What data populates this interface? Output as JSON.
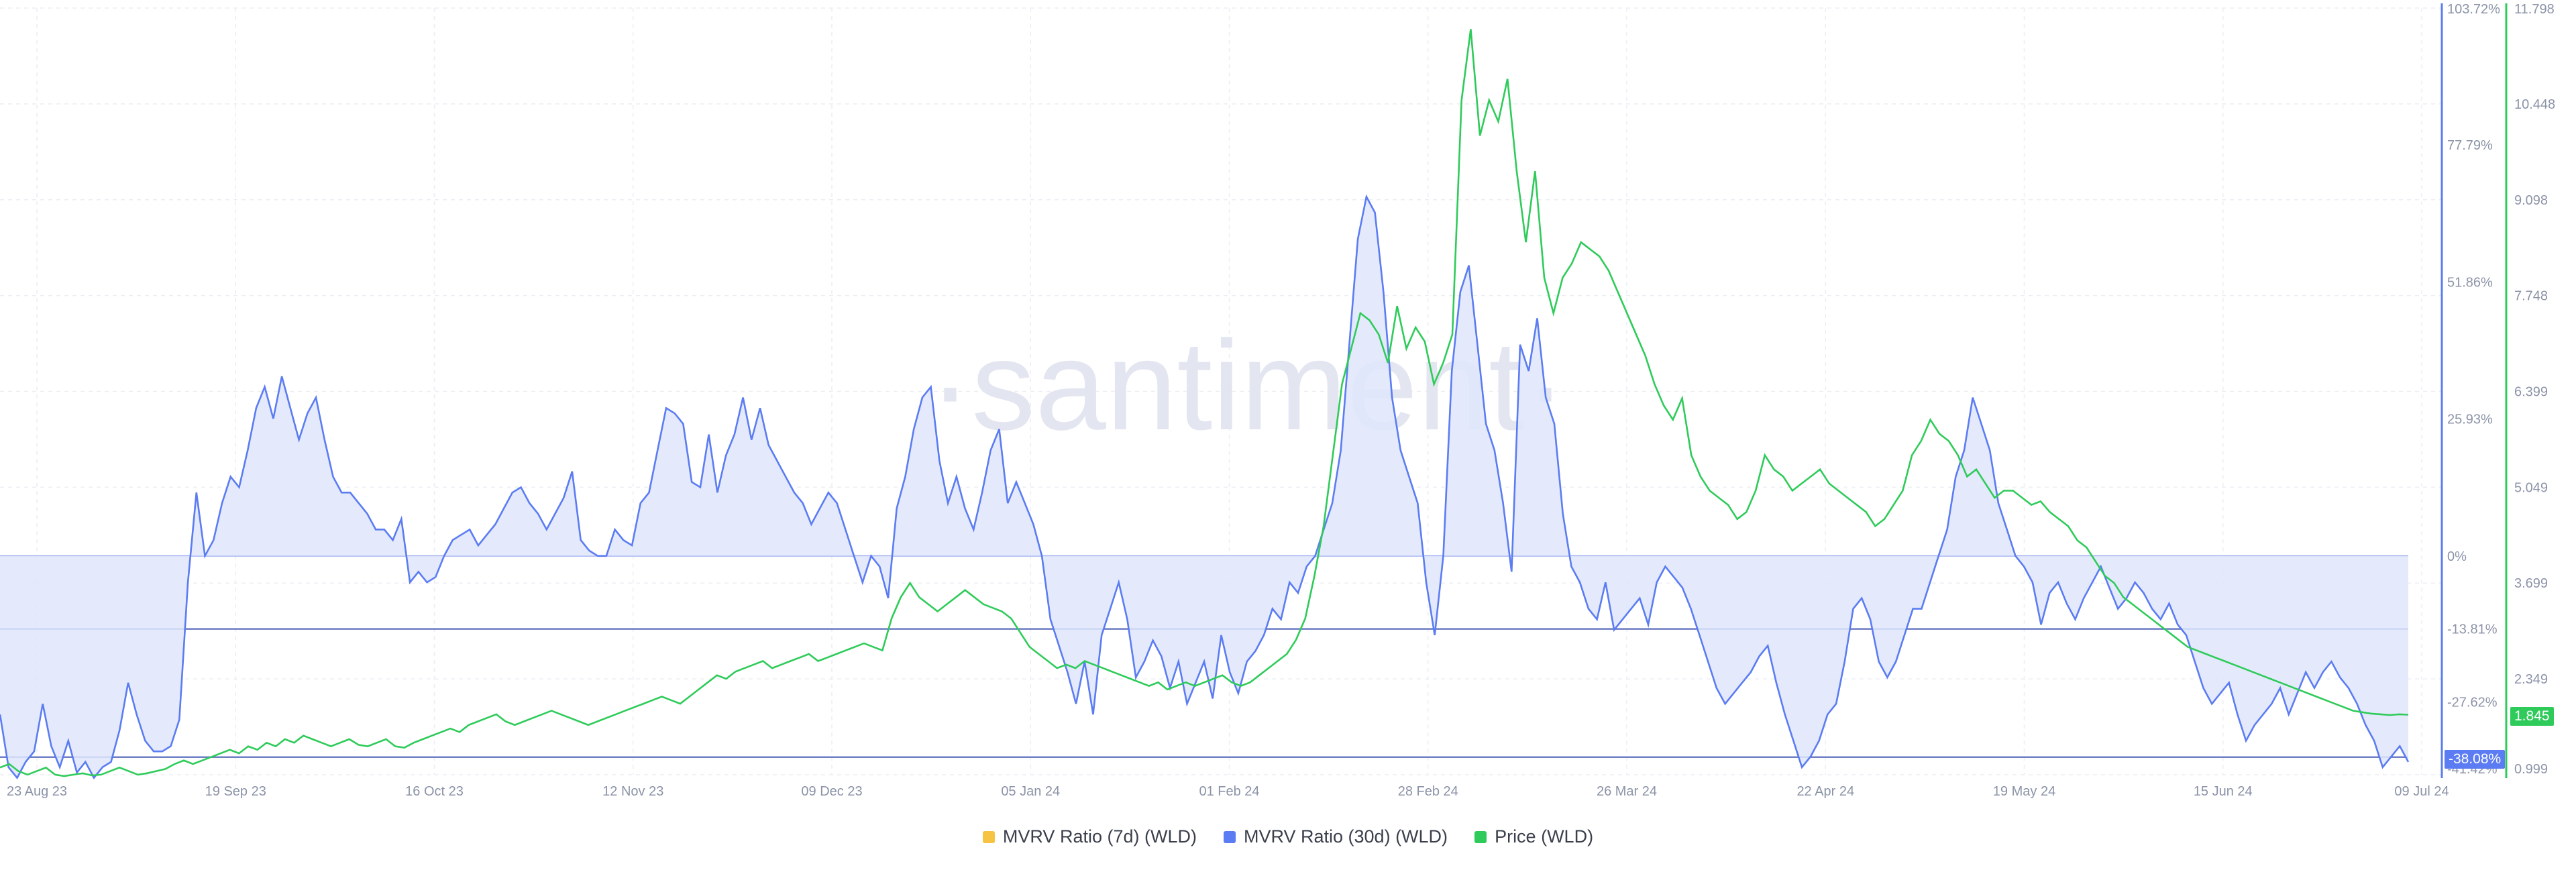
{
  "watermark": "·santiment·",
  "badges": {
    "mvrv30": "-38.08%",
    "price": "1.845"
  },
  "colors": {
    "mvrv7": "#f6c342",
    "mvrv30": "#5b7cf2",
    "price": "#2fcb5a",
    "fill": "#dfe6fc"
  },
  "legend": [
    "MVRV Ratio (7d) (WLD)",
    "MVRV Ratio (30d) (WLD)",
    "Price (WLD)"
  ],
  "chart_data": {
    "type": "line",
    "x_ticks": [
      "23 Aug 23",
      "19 Sep 23",
      "16 Oct 23",
      "12 Nov 23",
      "09 Dec 23",
      "05 Jan 24",
      "01 Feb 24",
      "28 Feb 24",
      "26 Mar 24",
      "22 Apr 24",
      "19 May 24",
      "15 Jun 24",
      "09 Jul 24"
    ],
    "y_left_ticks": [
      "103.72%",
      "77.79%",
      "51.86%",
      "25.93%",
      "0%",
      "-13.81%",
      "-27.62%",
      "-38.08%",
      "-41.42%"
    ],
    "y_right_ticks": [
      "11.798",
      "10.448",
      "9.098",
      "7.748",
      "6.399",
      "5.049",
      "3.699",
      "2.349",
      "0.999"
    ],
    "y_left_range": [
      -41.42,
      103.72
    ],
    "y_right_range": [
      0.999,
      11.798
    ],
    "reference_lines": [
      0,
      -13.81,
      -38.08
    ],
    "series": [
      {
        "name": "MVRV Ratio (30d) (WLD)",
        "axis": "left",
        "values": [
          -30,
          -40,
          -42,
          -39,
          -37,
          -28,
          -36,
          -40,
          -35,
          -41,
          -39,
          -42,
          -40,
          -39,
          -33,
          -24,
          -30,
          -35,
          -37,
          -37,
          -36,
          -31,
          -5,
          12,
          0,
          3,
          10,
          15,
          13,
          20,
          28,
          32,
          26,
          34,
          28,
          22,
          27,
          30,
          22,
          15,
          12,
          12,
          10,
          8,
          5,
          5,
          3,
          7,
          -5,
          -3,
          -5,
          -4,
          0,
          3,
          4,
          5,
          2,
          4,
          6,
          9,
          12,
          13,
          10,
          8,
          5,
          8,
          11,
          16,
          3,
          1,
          0,
          0,
          5,
          3,
          2,
          10,
          12,
          20,
          28,
          27,
          25,
          14,
          13,
          23,
          12,
          19,
          23,
          30,
          22,
          28,
          21,
          18,
          15,
          12,
          10,
          6,
          9,
          12,
          10,
          5,
          0,
          -5,
          0,
          -2,
          -8,
          9,
          15,
          24,
          30,
          32,
          18,
          10,
          15,
          9,
          5,
          12,
          20,
          24,
          10,
          14,
          10,
          6,
          0,
          -12,
          -17,
          -22,
          -28,
          -20,
          -30,
          -15,
          -10,
          -5,
          -12,
          -23,
          -20,
          -16,
          -19,
          -25,
          -20,
          -28,
          -24,
          -20,
          -27,
          -15,
          -22,
          -26,
          -20,
          -18,
          -15,
          -10,
          -12,
          -5,
          -7,
          -2,
          0,
          5,
          10,
          20,
          40,
          60,
          68,
          65,
          50,
          30,
          20,
          15,
          10,
          -5,
          -15,
          0,
          35,
          50,
          55,
          40,
          25,
          20,
          10,
          -3,
          40,
          35,
          45,
          30,
          25,
          8,
          -2,
          -5,
          -10,
          -12,
          -5,
          -14,
          -12,
          -10,
          -8,
          -13,
          -5,
          -2,
          -4,
          -6,
          -10,
          -15,
          -20,
          -25,
          -28,
          -26,
          -24,
          -22,
          -19,
          -17,
          -24,
          -30,
          -35,
          -40,
          -38,
          -35,
          -30,
          -28,
          -20,
          -10,
          -8,
          -12,
          -20,
          -23,
          -20,
          -15,
          -10,
          -10,
          -5,
          0,
          5,
          15,
          20,
          30,
          25,
          20,
          10,
          5,
          0,
          -2,
          -5,
          -13,
          -7,
          -5,
          -9,
          -12,
          -8,
          -5,
          -2,
          -6,
          -10,
          -8,
          -5,
          -7,
          -10,
          -12,
          -9,
          -13,
          -15,
          -20,
          -25,
          -28,
          -26,
          -24,
          -30,
          -35,
          -32,
          -30,
          -28,
          -25,
          -30,
          -26,
          -22,
          -25,
          -22,
          -20,
          -23,
          -25,
          -28,
          -32,
          -35,
          -40,
          -38,
          -36,
          -39
        ]
      },
      {
        "name": "Price (WLD)",
        "axis": "right",
        "values": [
          1.1,
          1.15,
          1.05,
          1.0,
          1.05,
          1.1,
          1.0,
          0.98,
          1.0,
          1.02,
          0.99,
          1.0,
          1.05,
          1.1,
          1.05,
          1.0,
          1.02,
          1.05,
          1.08,
          1.15,
          1.2,
          1.15,
          1.2,
          1.25,
          1.3,
          1.35,
          1.3,
          1.4,
          1.35,
          1.45,
          1.4,
          1.5,
          1.45,
          1.55,
          1.5,
          1.45,
          1.4,
          1.45,
          1.5,
          1.42,
          1.4,
          1.45,
          1.5,
          1.4,
          1.38,
          1.45,
          1.5,
          1.55,
          1.6,
          1.65,
          1.6,
          1.7,
          1.75,
          1.8,
          1.85,
          1.75,
          1.7,
          1.75,
          1.8,
          1.85,
          1.9,
          1.85,
          1.8,
          1.75,
          1.7,
          1.75,
          1.8,
          1.85,
          1.9,
          1.95,
          2.0,
          2.05,
          2.1,
          2.05,
          2.0,
          2.1,
          2.2,
          2.3,
          2.4,
          2.35,
          2.45,
          2.5,
          2.55,
          2.6,
          2.5,
          2.55,
          2.6,
          2.65,
          2.7,
          2.6,
          2.65,
          2.7,
          2.75,
          2.8,
          2.85,
          2.8,
          2.75,
          3.2,
          3.5,
          3.7,
          3.5,
          3.4,
          3.3,
          3.4,
          3.5,
          3.6,
          3.5,
          3.4,
          3.35,
          3.3,
          3.2,
          3.0,
          2.8,
          2.7,
          2.6,
          2.5,
          2.55,
          2.5,
          2.6,
          2.55,
          2.5,
          2.45,
          2.4,
          2.35,
          2.3,
          2.25,
          2.3,
          2.2,
          2.25,
          2.3,
          2.25,
          2.3,
          2.35,
          2.4,
          2.3,
          2.25,
          2.3,
          2.4,
          2.5,
          2.6,
          2.7,
          2.9,
          3.2,
          3.8,
          4.5,
          5.5,
          6.5,
          7.0,
          7.5,
          7.4,
          7.2,
          6.8,
          7.6,
          7.0,
          7.3,
          7.1,
          6.5,
          6.8,
          7.2,
          10.5,
          11.5,
          10.0,
          10.5,
          10.2,
          10.8,
          9.5,
          8.5,
          9.5,
          8.0,
          7.5,
          8.0,
          8.2,
          8.5,
          8.4,
          8.3,
          8.1,
          7.8,
          7.5,
          7.2,
          6.9,
          6.5,
          6.2,
          6.0,
          6.3,
          5.5,
          5.2,
          5.0,
          4.9,
          4.8,
          4.6,
          4.7,
          5.0,
          5.5,
          5.3,
          5.2,
          5.0,
          5.1,
          5.2,
          5.3,
          5.1,
          5.0,
          4.9,
          4.8,
          4.7,
          4.5,
          4.6,
          4.8,
          5.0,
          5.5,
          5.7,
          6.0,
          5.8,
          5.7,
          5.5,
          5.2,
          5.3,
          5.1,
          4.9,
          5.0,
          5.0,
          4.9,
          4.8,
          4.85,
          4.7,
          4.6,
          4.5,
          4.3,
          4.2,
          4.0,
          3.8,
          3.7,
          3.5,
          3.4,
          3.3,
          3.2,
          3.1,
          3.0,
          2.9,
          2.8,
          2.75,
          2.7,
          2.65,
          2.6,
          2.55,
          2.5,
          2.45,
          2.4,
          2.35,
          2.3,
          2.25,
          2.2,
          2.15,
          2.1,
          2.05,
          2.0,
          1.95,
          1.9,
          1.88,
          1.86,
          1.85,
          1.84,
          1.85,
          1.845
        ]
      }
    ]
  }
}
